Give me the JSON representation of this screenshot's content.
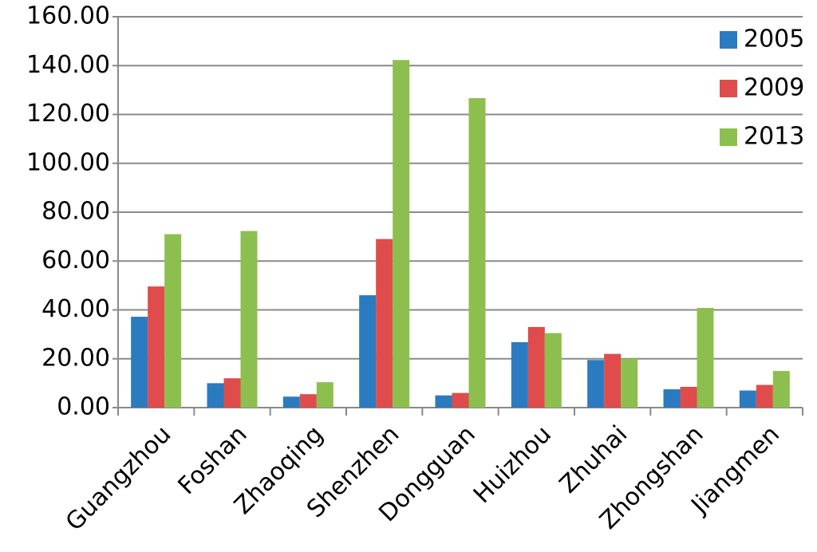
{
  "chart_data": {
    "type": "bar",
    "categories": [
      "Guangzhou",
      "Foshan",
      "Zhaoqing",
      "Shenzhen",
      "Dongguan",
      "Huizhou",
      "Zhuhai",
      "Zhongshan",
      "Jiangmen"
    ],
    "series": [
      {
        "name": "2005",
        "color": "#2b7bc0",
        "values": [
          37.2,
          10,
          4.5,
          46,
          5,
          26.8,
          19.5,
          7.5,
          7
        ]
      },
      {
        "name": "2009",
        "color": "#e04b4b",
        "values": [
          49.6,
          12,
          5.5,
          69,
          6,
          33,
          22,
          8.5,
          9.3
        ]
      },
      {
        "name": "2013",
        "color": "#8dbf4e",
        "values": [
          71,
          72.3,
          10.4,
          142.3,
          126.7,
          30.5,
          20,
          40.8,
          15
        ]
      }
    ],
    "ylim": [
      0,
      160
    ],
    "yticks": [
      {
        "value": 0,
        "label": "0.00"
      },
      {
        "value": 20,
        "label": "20.00"
      },
      {
        "value": 40,
        "label": "40.00"
      },
      {
        "value": 60,
        "label": "60.00"
      },
      {
        "value": 80,
        "label": "80.00"
      },
      {
        "value": 100,
        "label": "100.00"
      },
      {
        "value": 120,
        "label": "120.00"
      },
      {
        "value": 140,
        "label": "140.00"
      },
      {
        "value": 160,
        "label": "160.00"
      }
    ],
    "grid": true,
    "legend": "top-right"
  }
}
